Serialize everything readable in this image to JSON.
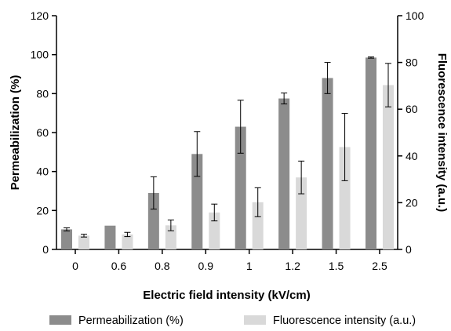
{
  "chart_data": {
    "type": "bar",
    "title": "",
    "xlabel": "Electric field intensity (kV/cm)",
    "ylabel": "Permeabilization (%)",
    "y2label": "Fluorescence intensity (a.u.)",
    "categories": [
      "0",
      "0.6",
      "0.8",
      "0.9",
      "1",
      "1.2",
      "1.5",
      "2.5"
    ],
    "ylim": [
      0,
      120
    ],
    "y2lim": [
      0,
      100
    ],
    "yticks": [
      0,
      20,
      40,
      60,
      80,
      100,
      120
    ],
    "y2ticks": [
      0,
      20,
      40,
      60,
      80,
      100
    ],
    "legend_position": "bottom",
    "grid": false,
    "series": [
      {
        "name": "Permeabilization (%)",
        "axis": "left",
        "color": "#8c8c8c",
        "values": [
          10.3,
          12.2,
          29.0,
          49.0,
          63.0,
          77.5,
          88.0,
          98.5
        ],
        "errors": [
          0.8,
          0,
          8.3,
          11.5,
          13.6,
          2.8,
          8.0,
          0.3
        ]
      },
      {
        "name": "Fluorescence intensity (a.u.)",
        "axis": "right",
        "color": "#d9d9d9",
        "values": [
          5.9,
          6.4,
          10.3,
          15.8,
          20.2,
          30.8,
          43.8,
          70.3
        ],
        "errors": [
          0.6,
          0.9,
          2.3,
          3.6,
          6.2,
          7.0,
          14.4,
          9.3
        ]
      }
    ]
  }
}
